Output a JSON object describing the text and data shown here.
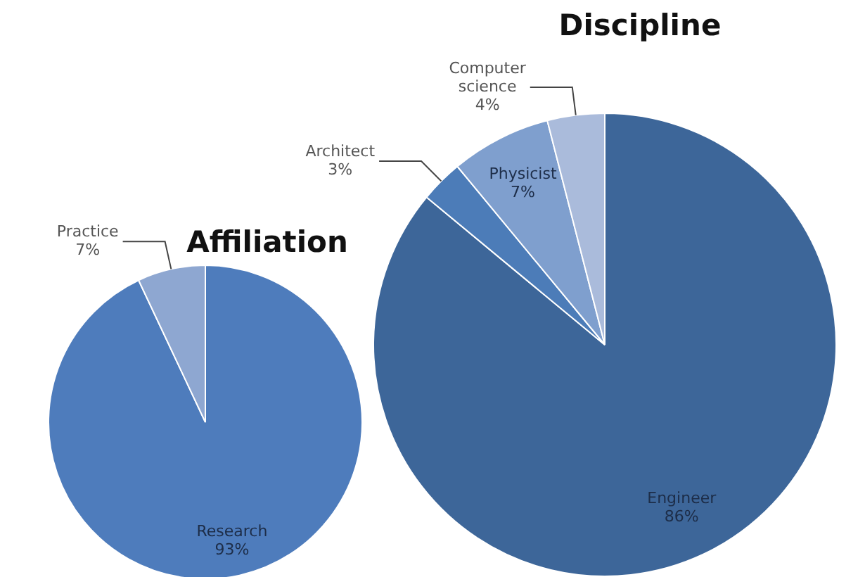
{
  "chart_data": [
    {
      "type": "pie",
      "title": "Affiliation",
      "categories": [
        "Research",
        "Practice"
      ],
      "values": [
        93,
        7
      ],
      "colors": [
        "#4e7cbc",
        "#8ea7d1"
      ],
      "value_labels": [
        "93%",
        "7%"
      ],
      "legend": false
    },
    {
      "type": "pie",
      "title": "Discipline",
      "categories": [
        "Engineer",
        "Architect",
        "Physicist",
        "Computer science"
      ],
      "values": [
        86,
        3,
        7,
        4
      ],
      "colors": [
        "#3d6699",
        "#4c7cb8",
        "#7f9fce",
        "#aabbdb"
      ],
      "value_labels": [
        "86%",
        "3%",
        "7%",
        "4%"
      ],
      "legend": false
    }
  ]
}
